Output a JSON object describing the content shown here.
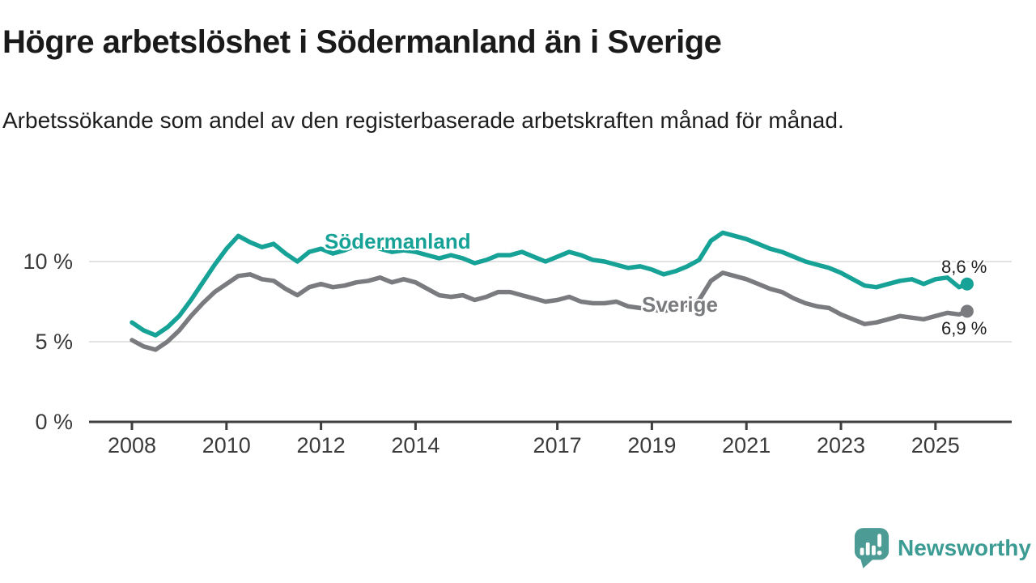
{
  "page": {
    "title": "Högre arbetslöshet i Södermanland än i Sverige",
    "subtitle": "Arbetssökande som andel av den registerbaserade arbetskraften månad för månad."
  },
  "footer": {
    "brand": "Newsworthy"
  },
  "colors": {
    "soder": "#16a296",
    "sverige": "#7a7b7f",
    "grid": "#d9d9d9",
    "axis": "#3f3f3f",
    "tick_label": "#3b3b3b",
    "value_label": "#1f1f1f",
    "logo_bubble": "#4c9c95",
    "logo_text": "#3c9c94"
  },
  "chart_data": {
    "type": "line",
    "title": "Högre arbetslöshet i Södermanland än i Sverige",
    "subtitle": "Arbetssökande som andel av den registerbaserade arbetskraften månad för månad.",
    "unit": "%",
    "x_unit": "decimal_year",
    "xlim": [
      2007.1,
      2026.6
    ],
    "ylim": [
      0,
      12.5
    ],
    "grid": "horizontal",
    "legend": "inline-labels",
    "y_ticks": [
      {
        "label": "10 %",
        "value": 10
      },
      {
        "label": "5 %",
        "value": 5
      },
      {
        "label": "0 %",
        "value": 0
      }
    ],
    "x_ticks": [
      {
        "label": "2008",
        "year": 2008
      },
      {
        "label": "2010",
        "year": 2010
      },
      {
        "label": "2012",
        "year": 2012
      },
      {
        "label": "2014",
        "year": 2014
      },
      {
        "label": "2017",
        "year": 2017
      },
      {
        "label": "2019",
        "year": 2019
      },
      {
        "label": "2021",
        "year": 2021
      },
      {
        "label": "2023",
        "year": 2023
      },
      {
        "label": "2025",
        "year": 2025
      }
    ],
    "x": [
      2008,
      2008.25,
      2008.5,
      2008.75,
      2009,
      2009.25,
      2009.5,
      2009.75,
      2010,
      2010.25,
      2010.5,
      2010.75,
      2011,
      2011.25,
      2011.5,
      2011.75,
      2012,
      2012.25,
      2012.5,
      2012.75,
      2013,
      2013.25,
      2013.5,
      2013.75,
      2014,
      2014.25,
      2014.5,
      2014.75,
      2015,
      2015.25,
      2015.5,
      2015.75,
      2016,
      2016.25,
      2016.5,
      2016.75,
      2017,
      2017.25,
      2017.5,
      2017.75,
      2018,
      2018.25,
      2018.5,
      2018.75,
      2019,
      2019.25,
      2019.5,
      2019.75,
      2020,
      2020.25,
      2020.5,
      2020.75,
      2021,
      2021.25,
      2021.5,
      2021.75,
      2022,
      2022.25,
      2022.5,
      2022.75,
      2023,
      2023.25,
      2023.5,
      2023.75,
      2024,
      2024.25,
      2024.5,
      2024.75,
      2025,
      2025.25,
      2025.5,
      2025.67
    ],
    "series": [
      {
        "id": "sodermanland",
        "name": "Södermanland",
        "color": "#16a296",
        "end_label": "8,6 %",
        "end_value": 8.6,
        "values": [
          6.2,
          5.7,
          5.4,
          5.9,
          6.6,
          7.6,
          8.7,
          9.8,
          10.8,
          11.6,
          11.2,
          10.9,
          11.1,
          10.5,
          10.0,
          10.6,
          10.8,
          10.5,
          10.7,
          11.0,
          11.1,
          10.8,
          10.6,
          10.7,
          10.6,
          10.4,
          10.2,
          10.4,
          10.2,
          9.9,
          10.1,
          10.4,
          10.4,
          10.6,
          10.3,
          10.0,
          10.3,
          10.6,
          10.4,
          10.1,
          10.0,
          9.8,
          9.6,
          9.7,
          9.5,
          9.2,
          9.4,
          9.7,
          10.1,
          11.3,
          11.8,
          11.6,
          11.4,
          11.1,
          10.8,
          10.6,
          10.3,
          10.0,
          9.8,
          9.6,
          9.3,
          8.9,
          8.5,
          8.4,
          8.6,
          8.8,
          8.9,
          8.6,
          8.9,
          9.0,
          8.4,
          8.6
        ]
      },
      {
        "id": "sverige",
        "name": "Sverige",
        "color": "#7a7b7f",
        "end_label": "6,9 %",
        "end_value": 6.9,
        "values": [
          5.1,
          4.7,
          4.5,
          5.0,
          5.7,
          6.6,
          7.4,
          8.1,
          8.6,
          9.1,
          9.2,
          8.9,
          8.8,
          8.3,
          7.9,
          8.4,
          8.6,
          8.4,
          8.5,
          8.7,
          8.8,
          9.0,
          8.7,
          8.9,
          8.7,
          8.3,
          7.9,
          7.8,
          7.9,
          7.6,
          7.8,
          8.1,
          8.1,
          7.9,
          7.7,
          7.5,
          7.6,
          7.8,
          7.5,
          7.4,
          7.4,
          7.5,
          7.2,
          7.1,
          7.0,
          6.9,
          7.1,
          7.3,
          7.6,
          8.8,
          9.3,
          9.1,
          8.9,
          8.6,
          8.3,
          8.1,
          7.7,
          7.4,
          7.2,
          7.1,
          6.7,
          6.4,
          6.1,
          6.2,
          6.4,
          6.6,
          6.5,
          6.4,
          6.6,
          6.8,
          6.7,
          6.9
        ]
      }
    ]
  }
}
